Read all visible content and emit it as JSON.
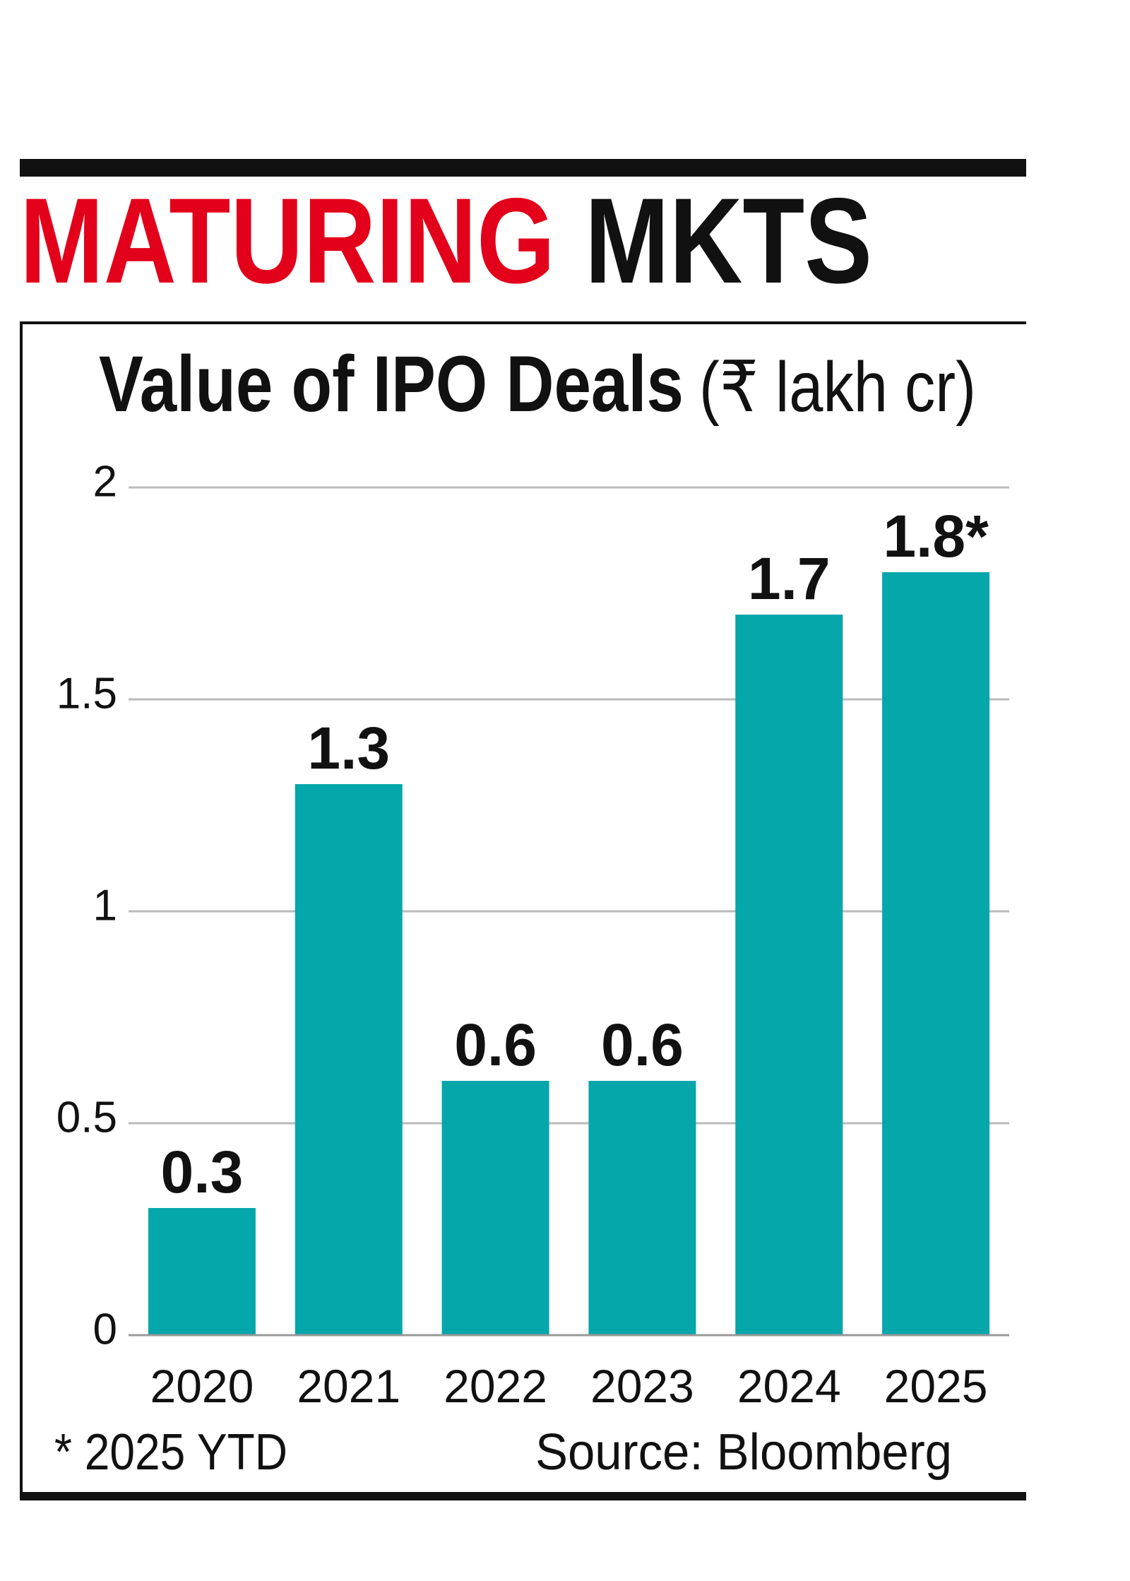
{
  "chart_data": {
    "type": "bar",
    "title": [
      "MATURING",
      "MKTS"
    ],
    "title_colors": [
      "#e2001a",
      "#111111"
    ],
    "subtitle": "Value of IPO Deals",
    "unit": "(₹ lakh cr)",
    "categories": [
      "2020",
      "2021",
      "2022",
      "2023",
      "2024",
      "2025"
    ],
    "values": [
      0.3,
      1.3,
      0.6,
      0.6,
      1.7,
      1.8
    ],
    "value_labels": [
      "0.3",
      "1.3",
      "0.6",
      "0.6",
      "1.7",
      "1.8*"
    ],
    "color": "#05a7ab",
    "ylim": [
      0,
      2
    ],
    "yticks": [
      0,
      0.5,
      1,
      1.5,
      2
    ],
    "grid": true,
    "footnote": "* 2025 YTD",
    "source": "Source: Bloomberg"
  }
}
